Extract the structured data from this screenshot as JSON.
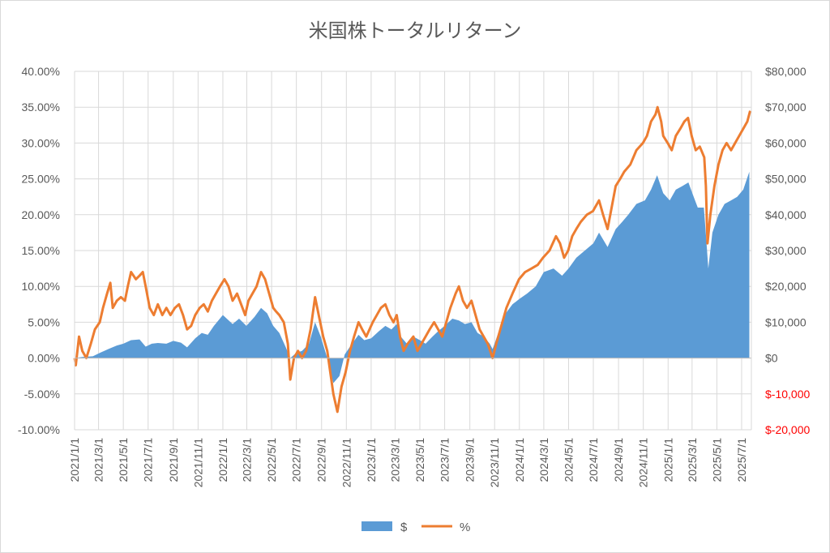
{
  "chart_data": {
    "type": "area",
    "title": "米国株トータルリターン",
    "x_tick_labels": [
      "2021/1/1",
      "2021/3/1",
      "2021/5/1",
      "2021/7/1",
      "2021/9/1",
      "2021/11/1",
      "2022/1/1",
      "2022/3/1",
      "2022/5/1",
      "2022/7/1",
      "2022/9/1",
      "2022/11/1",
      "2023/1/1",
      "2023/3/1",
      "2023/5/1",
      "2023/7/1",
      "2023/9/1",
      "2023/11/1",
      "2024/1/1",
      "2024/3/1",
      "2024/5/1",
      "2024/7/1",
      "2024/9/1",
      "2024/11/1",
      "2025/1/1",
      "2025/3/1",
      "2025/5/1",
      "2025/7/1"
    ],
    "y_left": {
      "ylim": [
        -10,
        40
      ],
      "tick_values": [
        -10,
        -5,
        0,
        5,
        10,
        15,
        20,
        25,
        30,
        35,
        40
      ],
      "tick_labels": [
        "-10.00%",
        "-5.00%",
        "0.00%",
        "5.00%",
        "10.00%",
        "15.00%",
        "20.00%",
        "25.00%",
        "30.00%",
        "35.00%",
        "40.00%"
      ]
    },
    "y_right": {
      "ylim": [
        -20000,
        80000
      ],
      "tick_values": [
        -20000,
        -10000,
        0,
        10000,
        20000,
        30000,
        40000,
        50000,
        60000,
        70000,
        80000
      ],
      "tick_labels": [
        "$-20,000",
        "$-10,000",
        "$0",
        "$10,000",
        "$20,000",
        "$30,000",
        "$40,000",
        "$50,000",
        "$60,000",
        "$70,000",
        "$80,000"
      ],
      "negative_color": "#ff0000"
    },
    "grid": true,
    "legend_position": "bottom",
    "series": [
      {
        "name": "$",
        "kind": "area",
        "axis": "right",
        "color": "#5b9bd5",
        "points": [
          [
            "2021/1/1",
            0
          ],
          [
            "2021/1/20",
            300
          ],
          [
            "2021/2/15",
            500
          ],
          [
            "2021/3/5",
            1500
          ],
          [
            "2021/3/25",
            2500
          ],
          [
            "2021/4/15",
            3500
          ],
          [
            "2021/5/1",
            4000
          ],
          [
            "2021/5/20",
            5000
          ],
          [
            "2021/6/10",
            5200
          ],
          [
            "2021/6/25",
            3200
          ],
          [
            "2021/7/10",
            4000
          ],
          [
            "2021/7/25",
            4200
          ],
          [
            "2021/8/15",
            4000
          ],
          [
            "2021/9/1",
            4800
          ],
          [
            "2021/9/20",
            4300
          ],
          [
            "2021/10/5",
            3000
          ],
          [
            "2021/10/25",
            5500
          ],
          [
            "2021/11/10",
            7000
          ],
          [
            "2021/11/25",
            6500
          ],
          [
            "2021/12/10",
            9000
          ],
          [
            "2022/1/1",
            12000
          ],
          [
            "2022/1/25",
            9500
          ],
          [
            "2022/2/10",
            11000
          ],
          [
            "2022/2/28",
            9000
          ],
          [
            "2022/3/20",
            11500
          ],
          [
            "2022/4/5",
            14000
          ],
          [
            "2022/4/20",
            12500
          ],
          [
            "2022/5/5",
            9000
          ],
          [
            "2022/5/20",
            7000
          ],
          [
            "2022/6/5",
            3000
          ],
          [
            "2022/6/16",
            0
          ],
          [
            "2022/7/1",
            1500
          ],
          [
            "2022/7/15",
            2000
          ],
          [
            "2022/8/1",
            4000
          ],
          [
            "2022/8/16",
            10000
          ],
          [
            "2022/8/30",
            6000
          ],
          [
            "2022/9/15",
            0
          ],
          [
            "2022/9/30",
            -7000
          ],
          [
            "2022/10/15",
            -5000
          ],
          [
            "2022/10/28",
            1000
          ],
          [
            "2022/11/15",
            4000
          ],
          [
            "2022/12/1",
            6500
          ],
          [
            "2022/12/15",
            5000
          ],
          [
            "2023/1/1",
            5500
          ],
          [
            "2023/1/20",
            7500
          ],
          [
            "2023/2/5",
            9000
          ],
          [
            "2023/2/20",
            8000
          ],
          [
            "2023/3/5",
            9500
          ],
          [
            "2023/3/15",
            6000
          ],
          [
            "2023/3/30",
            4000
          ],
          [
            "2023/4/15",
            6000
          ],
          [
            "2023/5/1",
            5000
          ],
          [
            "2023/5/15",
            4000
          ],
          [
            "2023/6/1",
            6000
          ],
          [
            "2023/6/15",
            7500
          ],
          [
            "2023/7/1",
            9000
          ],
          [
            "2023/7/20",
            11000
          ],
          [
            "2023/8/5",
            10500
          ],
          [
            "2023/8/20",
            9500
          ],
          [
            "2023/9/5",
            10000
          ],
          [
            "2023/9/20",
            7000
          ],
          [
            "2023/10/5",
            6000
          ],
          [
            "2023/10/20",
            4000
          ],
          [
            "2023/10/27",
            2500
          ],
          [
            "2023/11/10",
            7000
          ],
          [
            "2023/11/25",
            12000
          ],
          [
            "2023/12/15",
            15000
          ],
          [
            "2024/1/1",
            16500
          ],
          [
            "2024/1/20",
            18000
          ],
          [
            "2024/2/10",
            20000
          ],
          [
            "2024/3/1",
            24000
          ],
          [
            "2024/3/25",
            25000
          ],
          [
            "2024/4/15",
            23000
          ],
          [
            "2024/5/1",
            25000
          ],
          [
            "2024/5/20",
            28000
          ],
          [
            "2024/6/10",
            30000
          ],
          [
            "2024/7/1",
            32000
          ],
          [
            "2024/7/15",
            35000
          ],
          [
            "2024/8/5",
            31000
          ],
          [
            "2024/8/25",
            36000
          ],
          [
            "2024/9/10",
            38000
          ],
          [
            "2024/9/25",
            40000
          ],
          [
            "2024/10/15",
            43000
          ],
          [
            "2024/11/5",
            44000
          ],
          [
            "2024/11/20",
            47000
          ],
          [
            "2024/12/5",
            51000
          ],
          [
            "2024/12/20",
            46000
          ],
          [
            "2025/1/5",
            44000
          ],
          [
            "2025/1/20",
            47000
          ],
          [
            "2025/2/5",
            48000
          ],
          [
            "2025/2/20",
            49000
          ],
          [
            "2025/3/5",
            45000
          ],
          [
            "2025/3/15",
            42000
          ],
          [
            "2025/3/30",
            42000
          ],
          [
            "2025/4/5",
            33000
          ],
          [
            "2025/4/10",
            25000
          ],
          [
            "2025/4/20",
            35000
          ],
          [
            "2025/5/5",
            40000
          ],
          [
            "2025/5/20",
            43000
          ],
          [
            "2025/6/5",
            44000
          ],
          [
            "2025/6/20",
            45000
          ],
          [
            "2025/7/5",
            47000
          ],
          [
            "2025/7/20",
            52000
          ]
        ]
      },
      {
        "name": "%",
        "kind": "line",
        "axis": "left",
        "color": "#ed7d31",
        "points": [
          [
            "2021/1/1",
            0
          ],
          [
            "2021/1/4",
            -1
          ],
          [
            "2021/1/12",
            3
          ],
          [
            "2021/1/20",
            1
          ],
          [
            "2021/1/30",
            0
          ],
          [
            "2021/2/10",
            2
          ],
          [
            "2021/2/20",
            4
          ],
          [
            "2021/3/4",
            5
          ],
          [
            "2021/3/12",
            7
          ],
          [
            "2021/3/22",
            9
          ],
          [
            "2021/3/30",
            10.5
          ],
          [
            "2021/4/5",
            7
          ],
          [
            "2021/4/15",
            8
          ],
          [
            "2021/4/25",
            8.5
          ],
          [
            "2021/5/5",
            8
          ],
          [
            "2021/5/12",
            10
          ],
          [
            "2021/5/20",
            12
          ],
          [
            "2021/6/1",
            11
          ],
          [
            "2021/6/10",
            11.5
          ],
          [
            "2021/6/18",
            12
          ],
          [
            "2021/6/25",
            10
          ],
          [
            "2021/7/5",
            7
          ],
          [
            "2021/7/15",
            6
          ],
          [
            "2021/7/25",
            7.5
          ],
          [
            "2021/8/5",
            6
          ],
          [
            "2021/8/15",
            7
          ],
          [
            "2021/8/25",
            6
          ],
          [
            "2021/9/5",
            7
          ],
          [
            "2021/9/15",
            7.5
          ],
          [
            "2021/9/25",
            6
          ],
          [
            "2021/10/5",
            4
          ],
          [
            "2021/10/15",
            4.5
          ],
          [
            "2021/10/25",
            6
          ],
          [
            "2021/11/5",
            7
          ],
          [
            "2021/11/15",
            7.5
          ],
          [
            "2021/11/25",
            6.5
          ],
          [
            "2021/12/5",
            8
          ],
          [
            "2021/12/15",
            9
          ],
          [
            "2021/12/25",
            10
          ],
          [
            "2022/1/5",
            11
          ],
          [
            "2022/1/15",
            10
          ],
          [
            "2022/1/25",
            8
          ],
          [
            "2022/2/5",
            9
          ],
          [
            "2022/2/15",
            7.5
          ],
          [
            "2022/2/25",
            6
          ],
          [
            "2022/3/5",
            8
          ],
          [
            "2022/3/15",
            9
          ],
          [
            "2022/3/25",
            10
          ],
          [
            "2022/4/5",
            12
          ],
          [
            "2022/4/15",
            11
          ],
          [
            "2022/4/25",
            9
          ],
          [
            "2022/5/5",
            7
          ],
          [
            "2022/5/12",
            6.5
          ],
          [
            "2022/5/20",
            6
          ],
          [
            "2022/5/31",
            5
          ],
          [
            "2022/6/10",
            2
          ],
          [
            "2022/6/16",
            -3
          ],
          [
            "2022/6/25",
            0
          ],
          [
            "2022/7/5",
            1
          ],
          [
            "2022/7/15",
            0
          ],
          [
            "2022/7/25",
            1
          ],
          [
            "2022/8/5",
            4
          ],
          [
            "2022/8/16",
            8.5
          ],
          [
            "2022/8/25",
            6
          ],
          [
            "2022/9/5",
            3
          ],
          [
            "2022/9/15",
            1
          ],
          [
            "2022/9/25",
            -3
          ],
          [
            "2022/9/30",
            -5
          ],
          [
            "2022/10/10",
            -7.5
          ],
          [
            "2022/10/20",
            -4
          ],
          [
            "2022/10/30",
            -2
          ],
          [
            "2022/11/10",
            1
          ],
          [
            "2022/11/20",
            3
          ],
          [
            "2022/12/1",
            5
          ],
          [
            "2022/12/10",
            4
          ],
          [
            "2022/12/20",
            3
          ],
          [
            "2023/1/5",
            5
          ],
          [
            "2023/1/15",
            6
          ],
          [
            "2023/1/25",
            7
          ],
          [
            "2023/2/5",
            7.5
          ],
          [
            "2023/2/15",
            6
          ],
          [
            "2023/2/25",
            5
          ],
          [
            "2023/3/5",
            6
          ],
          [
            "2023/3/13",
            3
          ],
          [
            "2023/3/22",
            1
          ],
          [
            "2023/4/1",
            2
          ],
          [
            "2023/4/15",
            3
          ],
          [
            "2023/4/25",
            1
          ],
          [
            "2023/5/5",
            2
          ],
          [
            "2023/5/15",
            3
          ],
          [
            "2023/5/25",
            4
          ],
          [
            "2023/6/5",
            5
          ],
          [
            "2023/6/15",
            4
          ],
          [
            "2023/6/25",
            3
          ],
          [
            "2023/7/5",
            5
          ],
          [
            "2023/7/15",
            7
          ],
          [
            "2023/7/28",
            9
          ],
          [
            "2023/8/5",
            10
          ],
          [
            "2023/8/15",
            8
          ],
          [
            "2023/8/25",
            7
          ],
          [
            "2023/9/5",
            8
          ],
          [
            "2023/9/15",
            6
          ],
          [
            "2023/9/25",
            4
          ],
          [
            "2023/10/5",
            3
          ],
          [
            "2023/10/15",
            2
          ],
          [
            "2023/10/27",
            0
          ],
          [
            "2023/11/5",
            2
          ],
          [
            "2023/11/15",
            4
          ],
          [
            "2023/11/30",
            7
          ],
          [
            "2023/12/15",
            9
          ],
          [
            "2023/12/31",
            11
          ],
          [
            "2024/1/15",
            12
          ],
          [
            "2024/1/31",
            12.5
          ],
          [
            "2024/2/15",
            13
          ],
          [
            "2024/2/28",
            14
          ],
          [
            "2024/3/15",
            15
          ],
          [
            "2024/3/31",
            17
          ],
          [
            "2024/4/10",
            16
          ],
          [
            "2024/4/20",
            14
          ],
          [
            "2024/4/30",
            15
          ],
          [
            "2024/5/10",
            17
          ],
          [
            "2024/5/20",
            18
          ],
          [
            "2024/5/31",
            19
          ],
          [
            "2024/6/15",
            20
          ],
          [
            "2024/6/30",
            20.5
          ],
          [
            "2024/7/15",
            22
          ],
          [
            "2024/7/25",
            20
          ],
          [
            "2024/8/5",
            18
          ],
          [
            "2024/8/15",
            21
          ],
          [
            "2024/8/25",
            24
          ],
          [
            "2024/9/5",
            25
          ],
          [
            "2024/9/15",
            26
          ],
          [
            "2024/9/30",
            27
          ],
          [
            "2024/10/15",
            29
          ],
          [
            "2024/10/31",
            30
          ],
          [
            "2024/11/10",
            31
          ],
          [
            "2024/11/20",
            33
          ],
          [
            "2024/12/1",
            34
          ],
          [
            "2024/12/6",
            35
          ],
          [
            "2024/12/15",
            33
          ],
          [
            "2024/12/20",
            31
          ],
          [
            "2024/12/31",
            30
          ],
          [
            "2025/1/10",
            29
          ],
          [
            "2025/1/20",
            31
          ],
          [
            "2025/1/31",
            32
          ],
          [
            "2025/2/10",
            33
          ],
          [
            "2025/2/19",
            33.5
          ],
          [
            "2025/2/28",
            31
          ],
          [
            "2025/3/10",
            29
          ],
          [
            "2025/3/20",
            29.5
          ],
          [
            "2025/3/31",
            28
          ],
          [
            "2025/4/4",
            24
          ],
          [
            "2025/4/8",
            16
          ],
          [
            "2025/4/15",
            20
          ],
          [
            "2025/4/25",
            24
          ],
          [
            "2025/5/5",
            27
          ],
          [
            "2025/5/15",
            29
          ],
          [
            "2025/5/25",
            30
          ],
          [
            "2025/6/5",
            29
          ],
          [
            "2025/6/15",
            30
          ],
          [
            "2025/6/25",
            31
          ],
          [
            "2025/7/5",
            32
          ],
          [
            "2025/7/15",
            33
          ],
          [
            "2025/7/22",
            34.5
          ]
        ]
      }
    ]
  }
}
